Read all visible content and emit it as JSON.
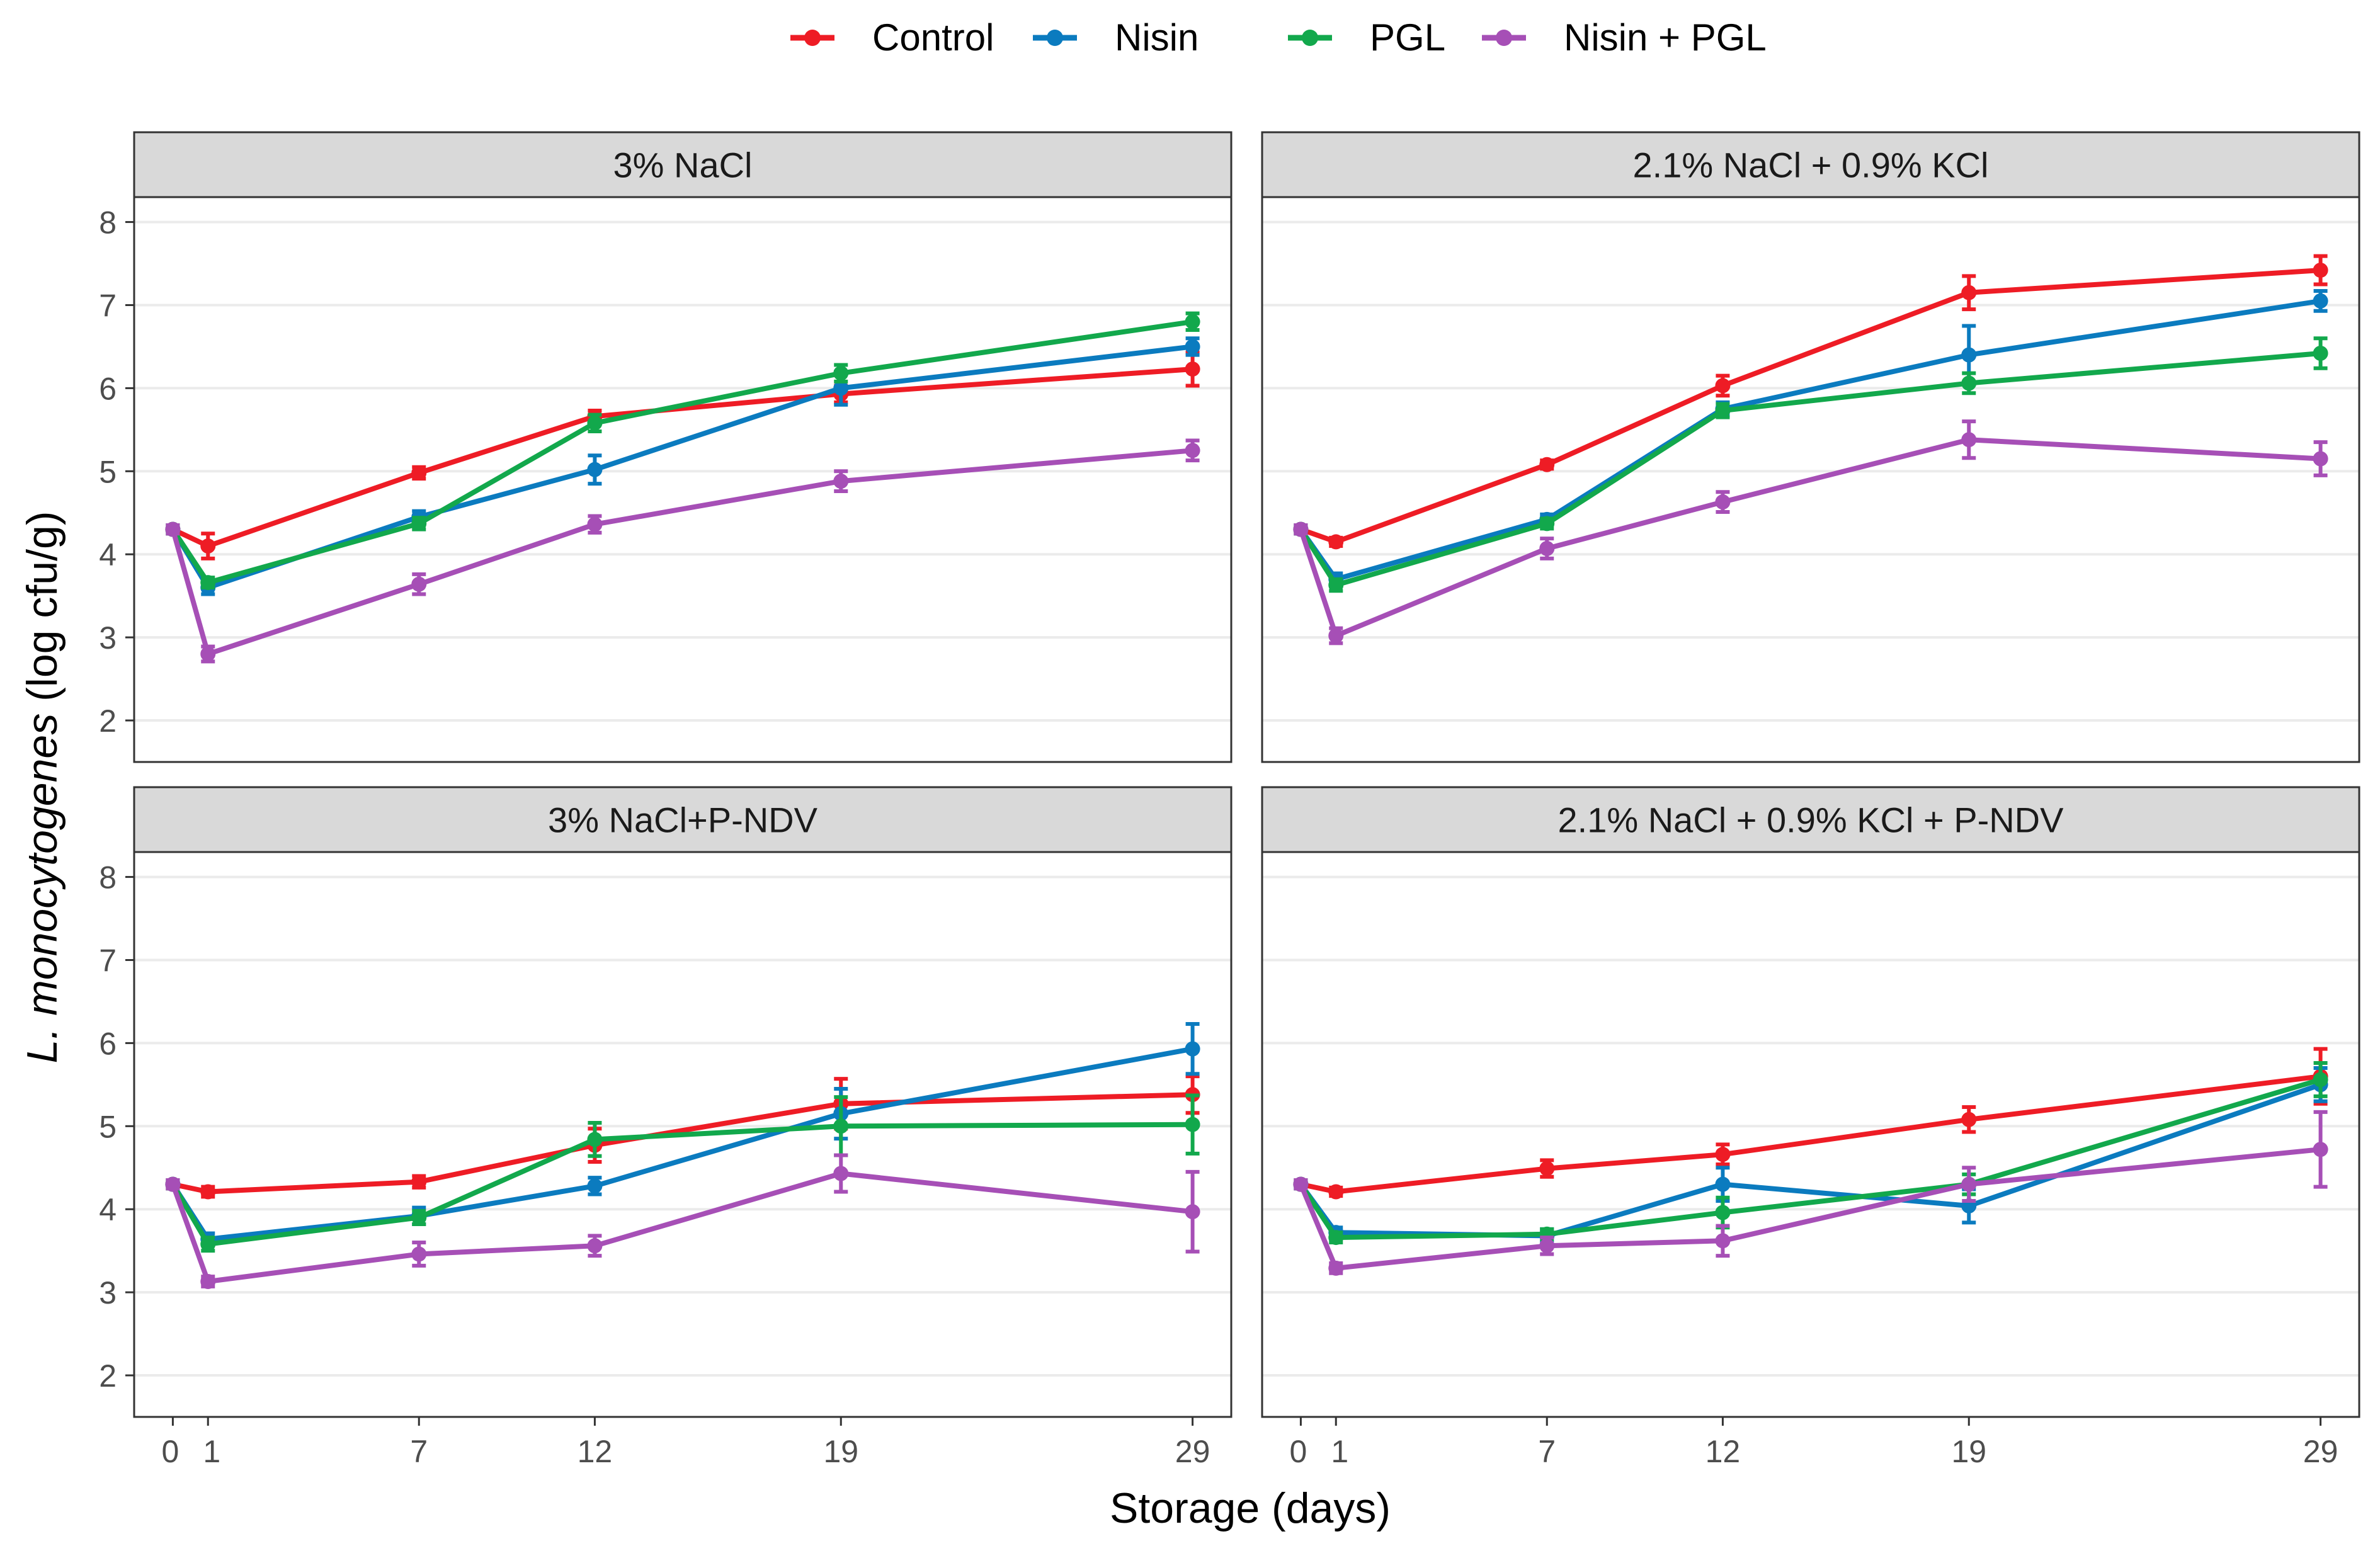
{
  "chart_data": {
    "type": "line",
    "x": [
      0,
      1,
      7,
      12,
      19,
      29
    ],
    "x_ticks": [
      "0",
      "1",
      "7",
      "12",
      "19",
      "29"
    ],
    "xlabel": "Storage (days)",
    "ylabel_italic": "L. monocytogenes",
    "ylabel_rest": " (log cfu/g)",
    "ylim": [
      1.5,
      8.3
    ],
    "y_ticks": [
      "2",
      "3",
      "4",
      "5",
      "6",
      "7",
      "8"
    ],
    "legend_position": "top",
    "colors": {
      "Control": "#ee1c25",
      "Nisin": "#0b7bbf",
      "PGL": "#12a84c",
      "Nisin + PGL": "#a64fb6"
    },
    "legend": [
      "Control",
      "Nisin",
      "PGL",
      "Nisin + PGL"
    ],
    "panels": [
      {
        "title": "3% NaCl",
        "series": [
          {
            "name": "Control",
            "values": [
              4.3,
              4.1,
              4.98,
              5.66,
              5.93,
              6.23
            ],
            "errors": [
              0.05,
              0.15,
              0.07,
              0.07,
              0.1,
              0.2
            ]
          },
          {
            "name": "Nisin",
            "values": [
              4.3,
              3.6,
              4.45,
              5.02,
              6.0,
              6.5
            ],
            "errors": [
              0.05,
              0.08,
              0.07,
              0.17,
              0.2,
              0.1
            ]
          },
          {
            "name": "PGL",
            "values": [
              4.3,
              3.66,
              4.37,
              5.58,
              6.18,
              6.8
            ],
            "errors": [
              0.05,
              0.06,
              0.07,
              0.1,
              0.1,
              0.1
            ]
          },
          {
            "name": "Nisin + PGL",
            "values": [
              4.3,
              2.8,
              3.64,
              4.36,
              4.88,
              5.25
            ],
            "errors": [
              0.05,
              0.09,
              0.12,
              0.1,
              0.12,
              0.12
            ]
          }
        ]
      },
      {
        "title": "2.1% NaCl + 0.9% KCl",
        "series": [
          {
            "name": "Control",
            "values": [
              4.3,
              4.15,
              5.08,
              6.03,
              7.15,
              7.42
            ],
            "errors": [
              0.05,
              0.05,
              0.05,
              0.12,
              0.2,
              0.17
            ]
          },
          {
            "name": "Nisin",
            "values": [
              4.3,
              3.7,
              4.42,
              5.75,
              6.4,
              7.05
            ],
            "errors": [
              0.05,
              0.07,
              0.06,
              0.08,
              0.35,
              0.12
            ]
          },
          {
            "name": "PGL",
            "values": [
              4.3,
              3.63,
              4.37,
              5.73,
              6.06,
              6.42
            ],
            "errors": [
              0.05,
              0.07,
              0.06,
              0.08,
              0.12,
              0.18
            ]
          },
          {
            "name": "Nisin + PGL",
            "values": [
              4.3,
              3.02,
              4.07,
              4.63,
              5.38,
              5.15
            ],
            "errors": [
              0.05,
              0.09,
              0.12,
              0.12,
              0.22,
              0.2
            ]
          }
        ]
      },
      {
        "title": "3% NaCl+P-NDV",
        "series": [
          {
            "name": "Control",
            "values": [
              4.3,
              4.21,
              4.33,
              4.77,
              5.27,
              5.38
            ],
            "errors": [
              0.05,
              0.06,
              0.07,
              0.2,
              0.3,
              0.22
            ]
          },
          {
            "name": "Nisin",
            "values": [
              4.3,
              3.64,
              3.92,
              4.28,
              5.15,
              5.93
            ],
            "errors": [
              0.05,
              0.07,
              0.1,
              0.1,
              0.3,
              0.3
            ]
          },
          {
            "name": "PGL",
            "values": [
              4.3,
              3.58,
              3.9,
              4.84,
              5.0,
              5.02
            ],
            "errors": [
              0.05,
              0.08,
              0.08,
              0.2,
              0.35,
              0.35
            ]
          },
          {
            "name": "Nisin + PGL",
            "values": [
              4.3,
              3.13,
              3.46,
              3.56,
              4.43,
              3.97
            ],
            "errors": [
              0.05,
              0.06,
              0.14,
              0.12,
              0.22,
              0.48
            ]
          }
        ]
      },
      {
        "title": "2.1% NaCl + 0.9% KCl + P-NDV",
        "series": [
          {
            "name": "Control",
            "values": [
              4.3,
              4.21,
              4.49,
              4.66,
              5.08,
              5.6
            ],
            "errors": [
              0.05,
              0.05,
              0.1,
              0.12,
              0.15,
              0.33
            ]
          },
          {
            "name": "Nisin",
            "values": [
              4.3,
              3.72,
              3.68,
              4.3,
              4.04,
              5.5
            ],
            "errors": [
              0.05,
              0.06,
              0.08,
              0.2,
              0.2,
              0.2
            ]
          },
          {
            "name": "PGL",
            "values": [
              4.3,
              3.66,
              3.7,
              3.96,
              4.3,
              5.56
            ],
            "errors": [
              0.05,
              0.06,
              0.06,
              0.18,
              0.12,
              0.2
            ]
          },
          {
            "name": "Nisin + PGL",
            "values": [
              4.3,
              3.29,
              3.56,
              3.62,
              4.3,
              4.72
            ],
            "errors": [
              0.05,
              0.06,
              0.1,
              0.18,
              0.2,
              0.45
            ]
          }
        ]
      }
    ]
  }
}
